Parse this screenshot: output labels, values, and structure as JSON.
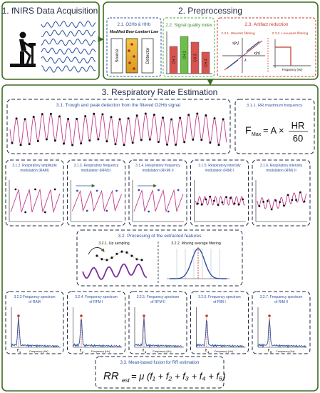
{
  "colors": {
    "stage1_border": "#3d6b1f",
    "stage2_border": "#3d6b1f",
    "stage3_border": "#3d6b1f",
    "quality_border": "#53a23c",
    "artifact_border": "#c0392b",
    "signal_blue": "#2d4fa0",
    "pink": "#c0398a",
    "purple": "#7a2ea0",
    "bar_red": "#d9534f",
    "bar_green": "#6cbf4a"
  },
  "stage1": {
    "title": "1. fNIRS Data Acquisition",
    "icon": "cyclist-icon"
  },
  "stage2": {
    "title": "2. Preprocessing",
    "o2hb": {
      "title": "2.1. O2Hb & HHb",
      "law": "Modified Beer-Lambert Law",
      "source": "Source",
      "detector": "Detector"
    },
    "quality": {
      "title": "2.2. Signal quality index",
      "bars": [
        "CH 1",
        "CH 2",
        "CH 3",
        "CH 4"
      ]
    },
    "artifact": {
      "title": "2.3. Artifact reduction",
      "wavelet": "2.3.1. Wavelet filtering",
      "lowpass": "2.3.2. Low-pass filtering",
      "freq_axis": "Frequency (Hz)",
      "lambda": "λ",
      "x_label": "x[n]",
      "s_label": "s[n]"
    }
  },
  "stage3": {
    "title": "3. Respiratory Rate Estimation",
    "trough": "3.1. Trough and peak detection from the filtered O2Hb signal",
    "rrmax": {
      "title": "3.1.1. RR maximum frequency",
      "formula_lhs": "F",
      "formula_sub": "Max",
      "formula_eq": "= A ×",
      "numerator": "HR",
      "denominator": "60"
    },
    "modulations": [
      "3.1.2. Respiratory amplitude modulation (RAM)",
      "3.1.3. Respiratory frequency modulation (RFM) I",
      "3.1.4. Respiratory frequency modulation (RFM) II",
      "3.1.5. Respiratory intensity modulation (RIM) I",
      "3.1.6. Respiratory intensity modulation (RIM) II"
    ],
    "processing": {
      "title": "3.2. Processing of the extracted features",
      "upsampling": "3.2.1. Up sampling",
      "moving": "3.2.2. Moving average filtering"
    },
    "spectra": [
      {
        "title": "3.2.3 Frequency spectrum of RAM",
        "fl": "f",
        "fs": "1"
      },
      {
        "title": "3.2.4. Frequency spectrum of RFM I",
        "fl": "f",
        "fs": "2"
      },
      {
        "title": "3.2.5. Frequency spectrum of RFM II",
        "fl": "f",
        "fs": "3"
      },
      {
        "title": "3.2.6. Frequency spectrum of RIM I",
        "fl": "f",
        "fs": "4"
      },
      {
        "title": "3.2.7. Frequency spectrum of RIM II",
        "fl": "f",
        "fs": "5"
      }
    ],
    "spectra_axis": "Frequency (Hz)",
    "fusion": {
      "title": "3.3. Mean-based fusion for RR estimation",
      "formula": "RR_est = μ (f1 + f2 + f3 + f4 + f5)",
      "lhs": "RR",
      "lhs_sub": "est",
      "rhs": "= μ (f₁ + f₂ + f₃ + f₄ + f₅)"
    }
  }
}
